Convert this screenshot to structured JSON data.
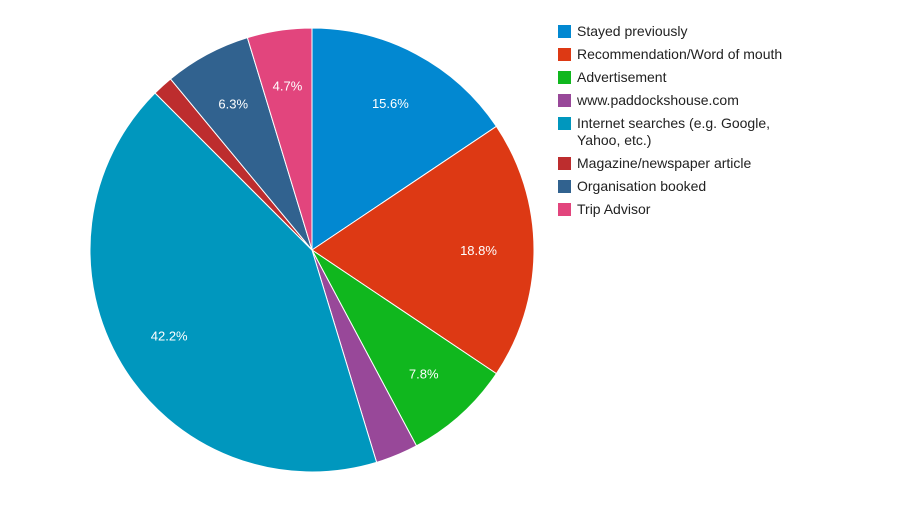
{
  "chart_data": {
    "type": "pie",
    "title": "",
    "legend_position": "right",
    "slices": [
      {
        "name": "Stayed previously",
        "value": 15.6,
        "label": "15.6%",
        "color": "#0288d1"
      },
      {
        "name": "Recommendation/Word of mouth",
        "value": 18.8,
        "label": "18.8%",
        "color": "#dd3914"
      },
      {
        "name": "Advertisement",
        "value": 7.8,
        "label": "7.8%",
        "color": "#10b71e"
      },
      {
        "name": "www.paddockshouse.com",
        "value": 3.1,
        "label": "",
        "color": "#984899"
      },
      {
        "name": "Internet searches (e.g. Google, Yahoo, etc.)",
        "value": 42.2,
        "label": "42.2%",
        "color": "#0097be"
      },
      {
        "name": "Magazine/newspaper article",
        "value": 1.5,
        "label": "",
        "color": "#bd2d2e"
      },
      {
        "name": "Organisation booked",
        "value": 6.3,
        "label": "6.3%",
        "color": "#31628f"
      },
      {
        "name": "Trip Advisor",
        "value": 4.7,
        "label": "4.7%",
        "color": "#e2457d"
      }
    ],
    "legend_lines": [
      [
        "Stayed previously"
      ],
      [
        "Recommendation/Word of mouth"
      ],
      [
        "Advertisement"
      ],
      [
        "www.paddockshouse.com"
      ],
      [
        "Internet searches (e.g. Google,",
        "Yahoo, etc.)"
      ],
      [
        "Magazine/newspaper article"
      ],
      [
        "Organisation booked"
      ],
      [
        "Trip Advisor"
      ]
    ]
  }
}
